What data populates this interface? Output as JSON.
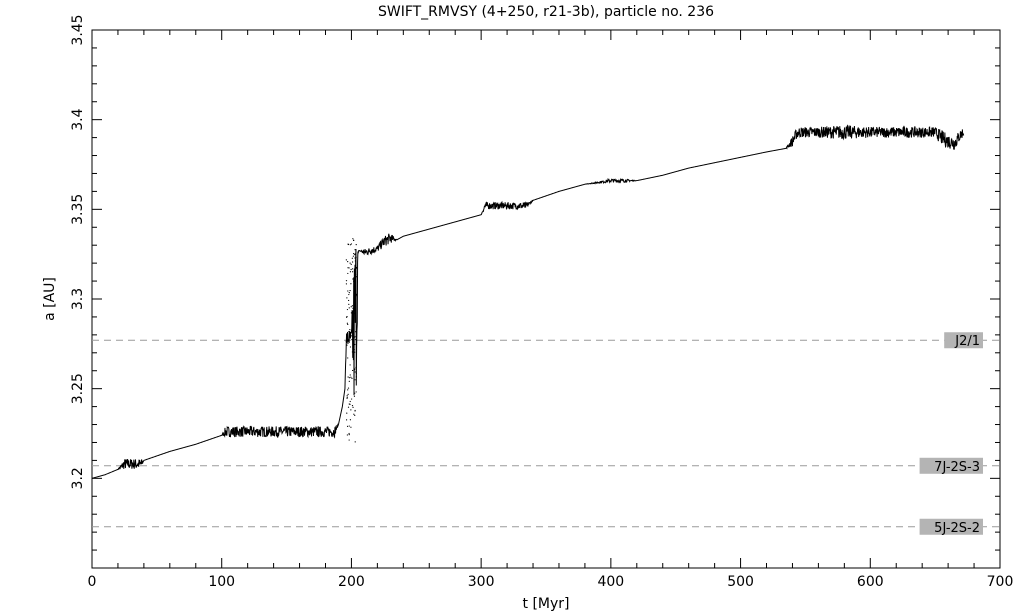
{
  "chart_data": {
    "type": "line",
    "title": "SWIFT_RMVSY (4+250, r21-3b), particle no. 236",
    "xlabel": "t [Myr]",
    "ylabel": "a [AU]",
    "xlim": [
      0,
      700
    ],
    "ylim": [
      3.15,
      3.45
    ],
    "xticks": [
      0,
      100,
      200,
      300,
      400,
      500,
      600,
      700
    ],
    "xtick_labels": [
      "0",
      "100",
      "200",
      "300",
      "400",
      "500",
      "600",
      "700"
    ],
    "yticks": [
      3.2,
      3.25,
      3.3,
      3.35,
      3.4,
      3.45
    ],
    "ytick_labels": [
      "3.2",
      "3.25",
      "3.3",
      "3.35",
      "3.4",
      "3.45"
    ],
    "grid": false,
    "resonances": [
      {
        "label": "J2/1",
        "a": 3.277
      },
      {
        "label": "7J-2S-3",
        "a": 3.207
      },
      {
        "label": "5J-2S-2",
        "a": 3.173
      }
    ],
    "series": [
      {
        "x": [
          0,
          10,
          20,
          25,
          38,
          40,
          60,
          80,
          100,
          103,
          120,
          150,
          180,
          187,
          190,
          193,
          195,
          196,
          198,
          200,
          202,
          204,
          205,
          206,
          210,
          220,
          225,
          230,
          235,
          240,
          260,
          280,
          300,
          303,
          310,
          320,
          335,
          340,
          360,
          380,
          400,
          410,
          420,
          440,
          460,
          480,
          500,
          520,
          535,
          540,
          543,
          545,
          560,
          580,
          600,
          620,
          640,
          650,
          655,
          660,
          665,
          670,
          672
        ],
        "y": [
          3.2,
          3.202,
          3.205,
          3.208,
          3.208,
          3.21,
          3.215,
          3.219,
          3.224,
          3.226,
          3.226,
          3.226,
          3.226,
          3.226,
          3.23,
          3.24,
          3.25,
          3.278,
          3.278,
          3.278,
          3.28,
          3.3,
          3.324,
          3.327,
          3.326,
          3.328,
          3.332,
          3.334,
          3.333,
          3.335,
          3.339,
          3.343,
          3.347,
          3.352,
          3.352,
          3.352,
          3.352,
          3.355,
          3.36,
          3.364,
          3.366,
          3.366,
          3.366,
          3.369,
          3.373,
          3.376,
          3.379,
          3.382,
          3.384,
          3.388,
          3.392,
          3.393,
          3.393,
          3.393,
          3.393,
          3.393,
          3.393,
          3.393,
          3.39,
          3.388,
          3.387,
          3.392,
          3.393
        ],
        "noise": [
          0,
          0,
          0,
          0.003,
          0.003,
          0,
          0,
          0,
          0,
          0.003,
          0.003,
          0.003,
          0.003,
          0.003,
          0,
          0,
          0,
          0.005,
          0.005,
          0.005,
          0.05,
          0.05,
          0.004,
          0,
          0.002,
          0.002,
          0.003,
          0.003,
          0,
          0,
          0,
          0,
          0,
          0.002,
          0.002,
          0.002,
          0.002,
          0,
          0,
          0,
          0.001,
          0.001,
          0,
          0,
          0,
          0,
          0,
          0,
          0,
          0.003,
          0.003,
          0.003,
          0.003,
          0.004,
          0.003,
          0.003,
          0.003,
          0.003,
          0.004,
          0.004,
          0.004,
          0.003,
          0.003
        ]
      }
    ]
  }
}
